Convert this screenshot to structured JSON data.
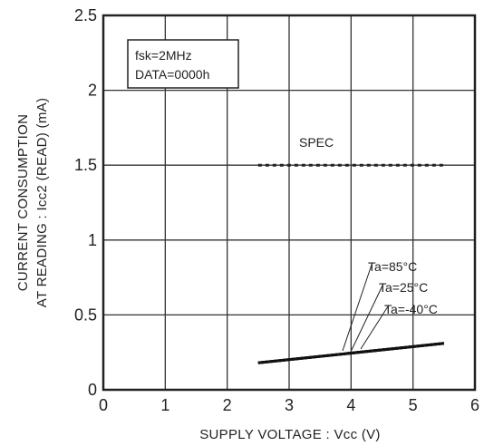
{
  "chart_data": {
    "type": "line",
    "xlabel": "SUPPLY  VOLTAGE : Vcc (V)",
    "ylabel_line1": "CURRENT CONSUMPTION",
    "ylabel_line2": "AT READING : Icc2 (READ) (mA)",
    "xlim": [
      0,
      6
    ],
    "ylim": [
      0,
      2.5
    ],
    "x_ticks": [
      "0",
      "1",
      "2",
      "3",
      "4",
      "5",
      "6"
    ],
    "y_ticks": [
      "0",
      "0.5",
      "1",
      "1.5",
      "2",
      "2.5"
    ],
    "grid": true,
    "conditions": {
      "line1": "fsk=2MHz",
      "line2": "DATA=0000h"
    },
    "spec": {
      "label": "SPEC",
      "x": [
        2.5,
        5.5
      ],
      "y": 1.5
    },
    "series": [
      {
        "name": "Ta=85°C",
        "x": [
          2.5,
          5.5
        ],
        "y": [
          0.18,
          0.31
        ]
      },
      {
        "name": "Ta=25°C",
        "x": [
          2.5,
          5.5
        ],
        "y": [
          0.18,
          0.31
        ]
      },
      {
        "name": "Ta=-40°C",
        "x": [
          2.5,
          5.5
        ],
        "y": [
          0.18,
          0.31
        ]
      }
    ]
  }
}
